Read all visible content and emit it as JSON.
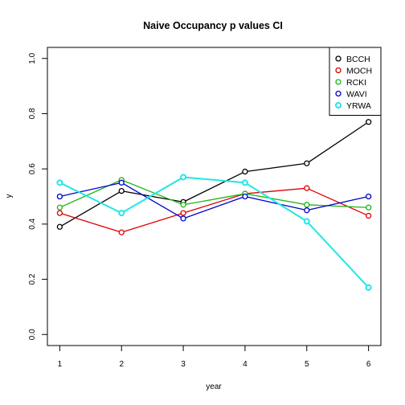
{
  "chart_data": {
    "type": "line",
    "title": "Naive Occupancy p values CI",
    "xlabel": "year",
    "ylabel": "y",
    "x": [
      1,
      2,
      3,
      4,
      5,
      6
    ],
    "x_ticks": [
      "1",
      "2",
      "3",
      "4",
      "5",
      "6"
    ],
    "xlim": [
      0.8,
      6.2
    ],
    "y_ticks": [
      "0.0",
      "0.2",
      "0.4",
      "0.6",
      "0.8",
      "1.0"
    ],
    "y_tick_values": [
      0,
      0.2,
      0.4,
      0.6,
      0.8,
      1.0
    ],
    "ylim": [
      -0.04,
      1.04
    ],
    "grid": false,
    "legend_position": "top-right",
    "series": [
      {
        "name": "BCCH",
        "color": "#000000",
        "values": [
          0.39,
          0.52,
          0.48,
          0.59,
          0.62,
          0.77
        ]
      },
      {
        "name": "MOCH",
        "color": "#df0000",
        "values": [
          0.44,
          0.37,
          0.44,
          0.51,
          0.53,
          0.43
        ]
      },
      {
        "name": "RCKI",
        "color": "#22b41a",
        "values": [
          0.46,
          0.56,
          0.47,
          0.51,
          0.47,
          0.46
        ]
      },
      {
        "name": "WAVI",
        "color": "#0000cc",
        "values": [
          0.5,
          0.55,
          0.42,
          0.5,
          0.45,
          0.5
        ]
      },
      {
        "name": "YRWA",
        "color": "#22e6e6",
        "values": [
          0.55,
          0.44,
          0.57,
          0.55,
          0.41,
          0.17
        ]
      }
    ]
  }
}
